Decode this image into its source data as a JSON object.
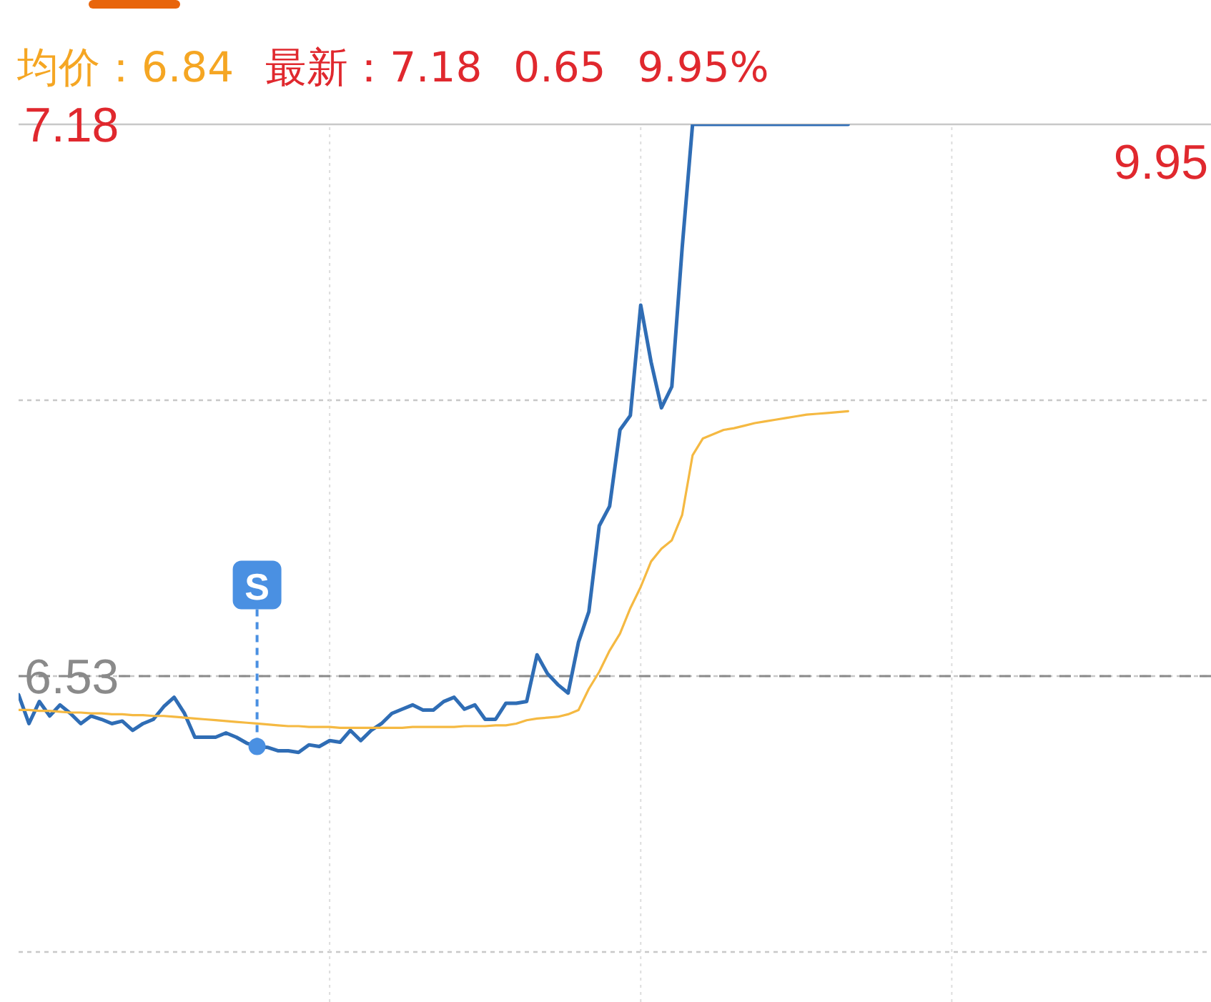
{
  "chart_data": {
    "type": "line",
    "categories": [
      null,
      null,
      null,
      null,
      null,
      null,
      null,
      null,
      null,
      null,
      null,
      null,
      null,
      null,
      null,
      null,
      null,
      null,
      null,
      null,
      null,
      null,
      null,
      null,
      null,
      null,
      null,
      null,
      null,
      null,
      null,
      null,
      null,
      null,
      null,
      null,
      null,
      null,
      null,
      null,
      null,
      null,
      null,
      null,
      null,
      null,
      null,
      null,
      null,
      null,
      null,
      null,
      null,
      null,
      null,
      null,
      null,
      null,
      null,
      null,
      null,
      null,
      null,
      null,
      null,
      null,
      null,
      null,
      null,
      null,
      null,
      null,
      null,
      null,
      null,
      null,
      null,
      null,
      null,
      null,
      null,
      null,
      null,
      null,
      null,
      null,
      null,
      null,
      null,
      null,
      null,
      null,
      null,
      null,
      null,
      null,
      null,
      null,
      null,
      null,
      null,
      null,
      null,
      null,
      null,
      null,
      null,
      null,
      null,
      null,
      null,
      null,
      null,
      null,
      null,
      null
    ],
    "series": [
      {
        "color": "#2f6db5",
        "values": [
          6.508,
          6.474,
          6.5,
          6.483,
          6.496,
          6.486,
          6.474,
          6.483,
          6.479,
          6.474,
          6.477,
          6.466,
          6.474,
          6.479,
          6.494,
          6.505,
          6.486,
          6.458,
          6.458,
          6.458,
          6.463,
          6.458,
          6.451,
          6.447,
          6.446,
          6.442,
          6.442,
          6.44,
          6.449,
          6.447,
          6.454,
          6.452,
          6.466,
          6.454,
          6.466,
          6.474,
          6.486,
          6.491,
          6.496,
          6.49,
          6.49,
          6.5,
          6.505,
          6.491,
          6.496,
          6.479,
          6.479,
          6.498,
          6.498,
          6.5,
          6.555,
          6.533,
          6.52,
          6.51,
          6.57,
          6.606,
          6.707,
          6.73,
          6.82,
          6.837,
          6.967,
          6.9,
          6.846,
          6.871,
          7.035,
          7.18,
          7.18,
          7.18,
          7.18,
          7.18,
          7.18,
          7.18,
          7.18,
          7.18,
          7.18,
          7.18,
          7.18,
          7.18,
          7.18,
          7.18,
          7.18,
          null,
          null,
          null,
          null,
          null,
          null,
          null,
          null,
          null,
          null,
          null,
          null,
          null,
          null,
          null,
          null,
          null,
          null,
          null,
          null,
          null,
          null,
          null,
          null,
          null,
          null,
          null,
          null,
          null,
          null,
          null,
          null,
          null,
          null,
          null
        ]
      },
      {
        "color": "#f5b942",
        "values": [
          6.49,
          6.49,
          6.489,
          6.489,
          6.488,
          6.487,
          6.487,
          6.486,
          6.486,
          6.485,
          6.485,
          6.484,
          6.484,
          6.483,
          6.483,
          6.482,
          6.481,
          6.48,
          6.479,
          6.478,
          6.477,
          6.476,
          6.475,
          6.474,
          6.473,
          6.472,
          6.471,
          6.471,
          6.47,
          6.47,
          6.47,
          6.469,
          6.469,
          6.469,
          6.469,
          6.469,
          6.469,
          6.469,
          6.47,
          6.47,
          6.47,
          6.47,
          6.47,
          6.471,
          6.471,
          6.471,
          6.472,
          6.472,
          6.474,
          6.478,
          6.48,
          6.481,
          6.482,
          6.485,
          6.49,
          6.515,
          6.535,
          6.56,
          6.58,
          6.61,
          6.635,
          6.665,
          6.68,
          6.69,
          6.72,
          6.79,
          6.81,
          6.815,
          6.82,
          6.822,
          6.825,
          6.828,
          6.83,
          6.832,
          6.834,
          6.836,
          6.838,
          6.839,
          6.84,
          6.841,
          6.842,
          null,
          null,
          null,
          null,
          null,
          null,
          null,
          null,
          null,
          null,
          null,
          null,
          null,
          null,
          null,
          null,
          null,
          null,
          null,
          null,
          null,
          null,
          null,
          null,
          null,
          null,
          null,
          null,
          null,
          null,
          null,
          null,
          null,
          null,
          null
        ]
      }
    ],
    "ylim": [
      6.146,
      7.18
    ],
    "yticks": [
      7.18,
      {
        "value": 6.855,
        "label": null
      },
      6.53,
      {
        "value": 6.205,
        "label": null
      }
    ],
    "ref_lines": [
      {
        "axis": "y",
        "value": 6.53,
        "color": "#8a8a8a",
        "line_style": "dashed"
      }
    ],
    "annotations": [
      "均价：",
      "6.84",
      "最新：",
      "7.18",
      "0.65",
      "9.95%",
      "9.95",
      {
        "text": "S",
        "y": 6.447
      }
    ],
    "grid": true,
    "tick_labels": "y",
    "marker": "none",
    "line_style": "solid"
  }
}
